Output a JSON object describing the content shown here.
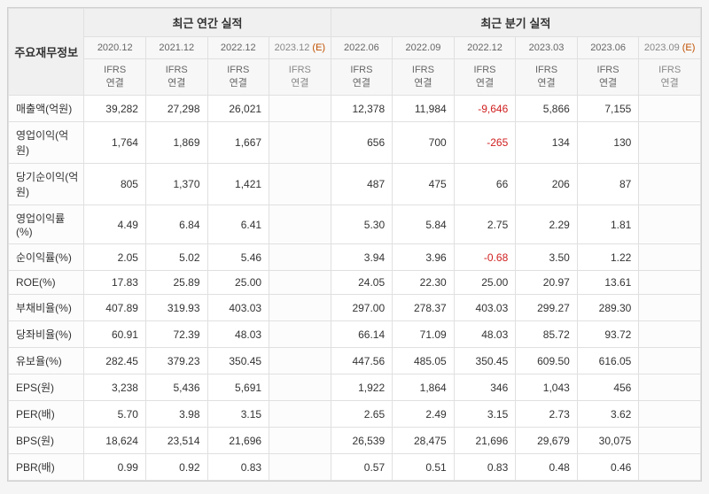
{
  "headers": {
    "rowHeader": "주요재무정보",
    "annualSection": "최근 연간 실적",
    "quarterSection": "최근 분기 실적",
    "annualPeriods": [
      {
        "period": "2020.12",
        "sub": "IFRS\n연결",
        "estimate": false
      },
      {
        "period": "2021.12",
        "sub": "IFRS\n연결",
        "estimate": false
      },
      {
        "period": "2022.12",
        "sub": "IFRS\n연결",
        "estimate": false
      },
      {
        "period": "2023.12",
        "sub": "IFRS\n연결",
        "estimate": true
      }
    ],
    "quarterPeriods": [
      {
        "period": "2022.06",
        "sub": "IFRS\n연결",
        "estimate": false
      },
      {
        "period": "2022.09",
        "sub": "IFRS\n연결",
        "estimate": false
      },
      {
        "period": "2022.12",
        "sub": "IFRS\n연결",
        "estimate": false
      },
      {
        "period": "2023.03",
        "sub": "IFRS\n연결",
        "estimate": false
      },
      {
        "period": "2023.06",
        "sub": "IFRS\n연결",
        "estimate": false
      },
      {
        "period": "2023.09",
        "sub": "IFRS\n연결",
        "estimate": true
      }
    ]
  },
  "rows": [
    {
      "label": "매출액(억원)",
      "annual": [
        "39,282",
        "27,298",
        "26,021",
        ""
      ],
      "quarter": [
        "12,378",
        "11,984",
        "-9,646",
        "5,866",
        "7,155",
        ""
      ]
    },
    {
      "label": "영업이익(억원)",
      "annual": [
        "1,764",
        "1,869",
        "1,667",
        ""
      ],
      "quarter": [
        "656",
        "700",
        "-265",
        "134",
        "130",
        ""
      ]
    },
    {
      "label": "당기순이익(억원)",
      "annual": [
        "805",
        "1,370",
        "1,421",
        ""
      ],
      "quarter": [
        "487",
        "475",
        "66",
        "206",
        "87",
        ""
      ]
    },
    {
      "label": "영업이익률(%)",
      "annual": [
        "4.49",
        "6.84",
        "6.41",
        ""
      ],
      "quarter": [
        "5.30",
        "5.84",
        "2.75",
        "2.29",
        "1.81",
        ""
      ]
    },
    {
      "label": "순이익률(%)",
      "annual": [
        "2.05",
        "5.02",
        "5.46",
        ""
      ],
      "quarter": [
        "3.94",
        "3.96",
        "-0.68",
        "3.50",
        "1.22",
        ""
      ]
    },
    {
      "label": "ROE(%)",
      "annual": [
        "17.83",
        "25.89",
        "25.00",
        ""
      ],
      "quarter": [
        "24.05",
        "22.30",
        "25.00",
        "20.97",
        "13.61",
        ""
      ]
    },
    {
      "label": "부채비율(%)",
      "annual": [
        "407.89",
        "319.93",
        "403.03",
        ""
      ],
      "quarter": [
        "297.00",
        "278.37",
        "403.03",
        "299.27",
        "289.30",
        ""
      ]
    },
    {
      "label": "당좌비율(%)",
      "annual": [
        "60.91",
        "72.39",
        "48.03",
        ""
      ],
      "quarter": [
        "66.14",
        "71.09",
        "48.03",
        "85.72",
        "93.72",
        ""
      ]
    },
    {
      "label": "유보율(%)",
      "annual": [
        "282.45",
        "379.23",
        "350.45",
        ""
      ],
      "quarter": [
        "447.56",
        "485.05",
        "350.45",
        "609.50",
        "616.05",
        ""
      ]
    },
    {
      "label": "EPS(원)",
      "annual": [
        "3,238",
        "5,436",
        "5,691",
        ""
      ],
      "quarter": [
        "1,922",
        "1,864",
        "346",
        "1,043",
        "456",
        ""
      ]
    },
    {
      "label": "PER(배)",
      "annual": [
        "5.70",
        "3.98",
        "3.15",
        ""
      ],
      "quarter": [
        "2.65",
        "2.49",
        "3.15",
        "2.73",
        "3.62",
        ""
      ]
    },
    {
      "label": "BPS(원)",
      "annual": [
        "18,624",
        "23,514",
        "21,696",
        ""
      ],
      "quarter": [
        "26,539",
        "28,475",
        "21,696",
        "29,679",
        "30,075",
        ""
      ]
    },
    {
      "label": "PBR(배)",
      "annual": [
        "0.99",
        "0.92",
        "0.83",
        ""
      ],
      "quarter": [
        "0.57",
        "0.51",
        "0.83",
        "0.48",
        "0.46",
        ""
      ]
    }
  ],
  "styling": {
    "background_color": "#f5f5f5",
    "table_background": "#ffffff",
    "border_color": "#e0e0e0",
    "outer_border_color": "#d0d0d0",
    "header_bg": "#f0f0f0",
    "subheader_bg": "#f7f7f7",
    "rowlabel_bg": "#fcfcfc",
    "text_color": "#333333",
    "negative_color": "#d02020",
    "estimate_mark_color": "#c05000",
    "font_size_base": 12,
    "font_size_header": 13,
    "font_size_sub": 11
  }
}
